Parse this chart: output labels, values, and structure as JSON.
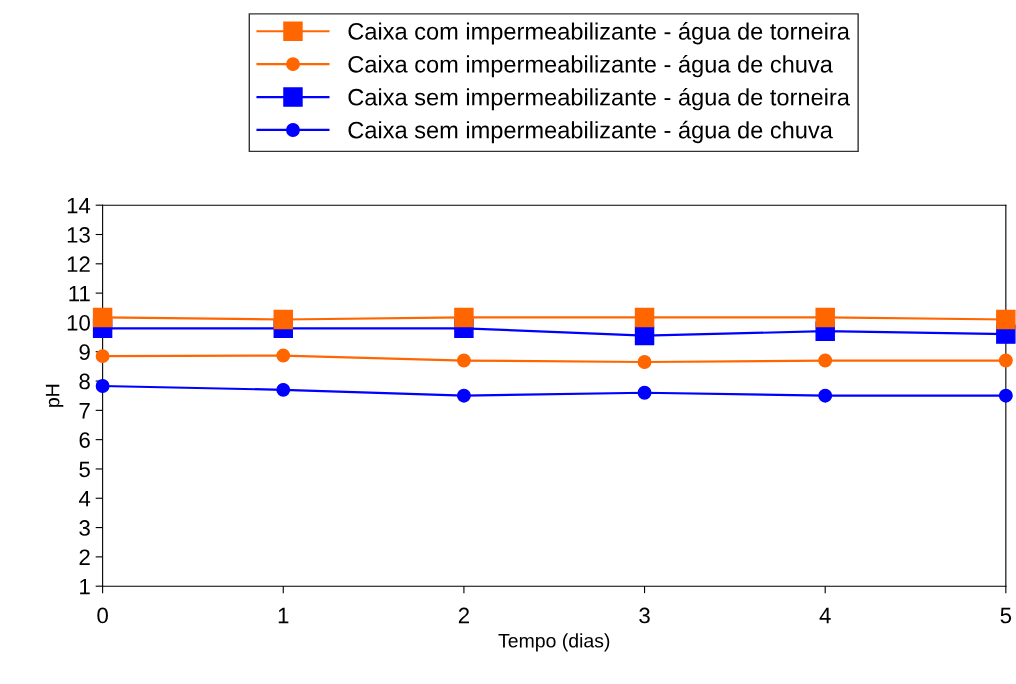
{
  "chart_data": {
    "type": "line",
    "xlabel": "Tempo (dias)",
    "ylabel": "pH",
    "x": [
      0,
      1,
      2,
      3,
      4,
      5
    ],
    "series": [
      {
        "name": "Caixa com impermeabilizante - água de torneira",
        "color": "#ff6600",
        "marker": "square",
        "values": [
          10.17,
          10.1,
          10.17,
          10.17,
          10.17,
          10.1
        ]
      },
      {
        "name": "Caixa com impermeabilizante - água de chuva",
        "color": "#ff6600",
        "marker": "circle",
        "values": [
          8.85,
          8.87,
          8.7,
          8.65,
          8.7,
          8.7
        ]
      },
      {
        "name": "Caixa sem impermeabilizante - água de torneira",
        "color": "#0000ff",
        "marker": "square",
        "values": [
          9.8,
          9.8,
          9.8,
          9.55,
          9.7,
          9.6
        ]
      },
      {
        "name": "Caixa sem impermeabilizante - água de chuva",
        "color": "#0000ff",
        "marker": "circle",
        "values": [
          7.83,
          7.7,
          7.5,
          7.6,
          7.5,
          7.5
        ]
      }
    ],
    "xlim": [
      0,
      5
    ],
    "xticks": [
      0,
      1,
      2,
      3,
      4,
      5
    ],
    "ylim": [
      1,
      14
    ],
    "yticks": [
      1,
      2,
      3,
      4,
      5,
      6,
      7,
      8,
      9,
      10,
      11,
      12,
      13,
      14
    ],
    "grid": false,
    "legend": "top",
    "line_style": "solid"
  }
}
